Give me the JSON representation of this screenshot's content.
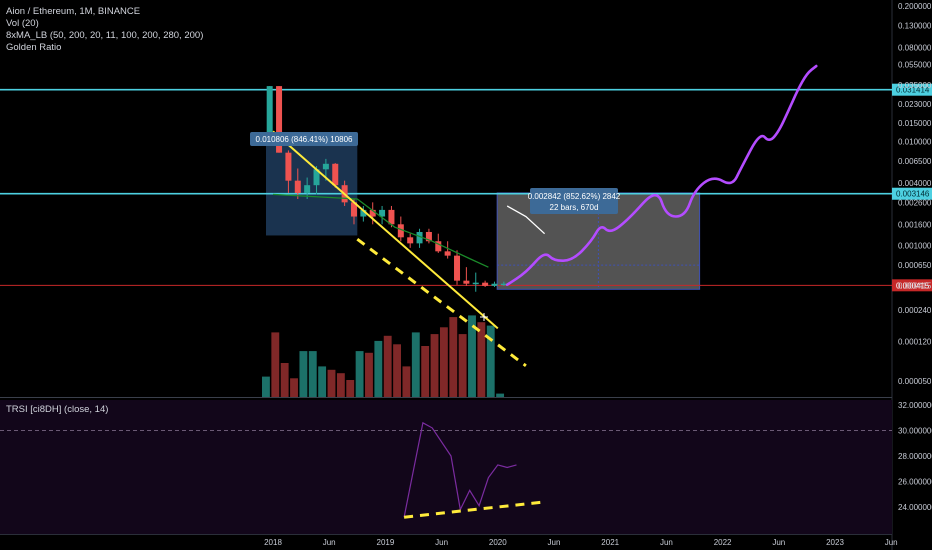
{
  "legend": {
    "line1": "Aion / Ethereum, 1M, BINANCE",
    "line2": "Vol (20)",
    "line3": "8xMA_LB (50, 200, 20, 11, 100, 200, 280, 200)",
    "line4": "Golden Ratio"
  },
  "rsi_title": "TRSI [ci8DH] (close, 14)",
  "colors": {
    "background": "#000000",
    "up_candle": "#26a69a",
    "down_candle": "#ef5350",
    "cyan_line": "#4dd0e1",
    "red_line": "#c62828",
    "yellow_trend": "#ffeb3b",
    "purple_projection": "#b44cff",
    "box_blue": "#2f5d8f",
    "box_grey": "#8a8a8a",
    "rsi_line": "#7b2ca0"
  },
  "chart_data": [
    {
      "type": "line",
      "title": "Aion / Ethereum, 1M, BINANCE",
      "y_scale": "log",
      "y_ticks": [
        "0.200000",
        "0.130000",
        "0.080000",
        "0.055000",
        "0.035000",
        "0.023000",
        "0.015000",
        "0.010000",
        "0.006500",
        "0.004000",
        "0.002600",
        "0.001600",
        "0.001000",
        "0.000650",
        "0.000415",
        "0.000240",
        "0.000120",
        "0.000050"
      ],
      "x_ticks": [
        "2018",
        "Jun",
        "2019",
        "Jun",
        "2020",
        "Jun",
        "2021",
        "Jun",
        "2022",
        "Jun",
        "2023",
        "Jun"
      ],
      "horizontal_levels": [
        {
          "value": "0.031414",
          "color": "#4dd0e1"
        },
        {
          "value": "0.003146",
          "color": "#4dd0e1"
        },
        {
          "value": "0.000415",
          "color": "#c62828"
        }
      ],
      "measure_labels": [
        {
          "text": "0.010806 (846.41%) 10806"
        },
        {
          "line1": "0.002842 (852.62%) 2842",
          "line2": "22 bars, 670d"
        }
      ],
      "candles": [
        {
          "o": 0.0118,
          "h": 0.034,
          "l": 0.0106,
          "c": 0.034
        },
        {
          "o": 0.034,
          "h": 0.034,
          "l": 0.0078,
          "c": 0.0078
        },
        {
          "o": 0.0078,
          "h": 0.0082,
          "l": 0.0032,
          "c": 0.0042
        },
        {
          "o": 0.0042,
          "h": 0.0055,
          "l": 0.0028,
          "c": 0.0032
        },
        {
          "o": 0.0032,
          "h": 0.0045,
          "l": 0.0028,
          "c": 0.0038
        },
        {
          "o": 0.0038,
          "h": 0.0058,
          "l": 0.0031,
          "c": 0.0054
        },
        {
          "o": 0.0054,
          "h": 0.0068,
          "l": 0.0042,
          "c": 0.0061
        },
        {
          "o": 0.0061,
          "h": 0.0062,
          "l": 0.0036,
          "c": 0.0038
        },
        {
          "o": 0.0038,
          "h": 0.0042,
          "l": 0.0024,
          "c": 0.0026
        },
        {
          "o": 0.0026,
          "h": 0.0028,
          "l": 0.0016,
          "c": 0.0019
        },
        {
          "o": 0.0019,
          "h": 0.0024,
          "l": 0.0017,
          "c": 0.0022
        },
        {
          "o": 0.0022,
          "h": 0.0026,
          "l": 0.0016,
          "c": 0.0019
        },
        {
          "o": 0.0019,
          "h": 0.0024,
          "l": 0.0016,
          "c": 0.0022
        },
        {
          "o": 0.0022,
          "h": 0.0024,
          "l": 0.0015,
          "c": 0.0016
        },
        {
          "o": 0.0016,
          "h": 0.0019,
          "l": 0.0011,
          "c": 0.0012
        },
        {
          "o": 0.0012,
          "h": 0.0013,
          "l": 0.00095,
          "c": 0.00105
        },
        {
          "o": 0.00105,
          "h": 0.00145,
          "l": 0.00095,
          "c": 0.00135
        },
        {
          "o": 0.00135,
          "h": 0.00145,
          "l": 0.00105,
          "c": 0.0011
        },
        {
          "o": 0.0011,
          "h": 0.0013,
          "l": 0.00085,
          "c": 0.00088
        },
        {
          "o": 0.00088,
          "h": 0.0011,
          "l": 0.00075,
          "c": 0.0008
        },
        {
          "o": 0.0008,
          "h": 0.0009,
          "l": 0.00042,
          "c": 0.00046
        },
        {
          "o": 0.00046,
          "h": 0.00062,
          "l": 0.00041,
          "c": 0.00043
        },
        {
          "o": 0.00043,
          "h": 0.00055,
          "l": 0.00036,
          "c": 0.00044
        },
        {
          "o": 0.00044,
          "h": 0.00046,
          "l": 0.0004,
          "c": 0.00041
        },
        {
          "o": 0.00041,
          "h": 0.00045,
          "l": 0.0004,
          "c": 0.00043
        },
        {
          "o": 0.00043,
          "h": 0.00045,
          "l": 0.00041,
          "c": 0.00043
        }
      ],
      "volumes": [
        0.12,
        0.38,
        0.2,
        0.11,
        0.27,
        0.27,
        0.18,
        0.16,
        0.14,
        0.1,
        0.27,
        0.26,
        0.33,
        0.36,
        0.31,
        0.18,
        0.38,
        0.3,
        0.37,
        0.41,
        0.47,
        0.37,
        0.48,
        0.44,
        0.42,
        0.02
      ],
      "ma_green": [
        {
          "x": "Jan 2018",
          "y": 0.0031
        },
        {
          "x": "Oct 2018",
          "y": 0.0028
        },
        {
          "x": "Feb 2019",
          "y": 0.0015
        },
        {
          "x": "Jun 2019",
          "y": 0.0011
        },
        {
          "x": "Oct 2019",
          "y": 0.00075
        },
        {
          "x": "Dec 2019",
          "y": 0.00062
        }
      ],
      "ma_white": [
        {
          "x": "Feb 2020",
          "y": 0.0024
        },
        {
          "x": "Apr 2020",
          "y": 0.0019
        },
        {
          "x": "Jun 2020",
          "y": 0.0013
        }
      ],
      "trendline_solid": [
        {
          "x": "Jan 2018",
          "y": 0.0125
        },
        {
          "x": "Jan 2020",
          "y": 0.00016
        }
      ],
      "trendline_dashed": [
        {
          "x": "Oct 2018",
          "y": 0.00115
        },
        {
          "x": "Apr 2020",
          "y": 7e-05
        }
      ],
      "projection": [
        {
          "x": "Feb 2020",
          "y": 0.00042
        },
        {
          "x": "Apr 2020",
          "y": 0.00055
        },
        {
          "x": "Jun 2020",
          "y": 0.00088
        },
        {
          "x": "Jul 2020",
          "y": 0.00071
        },
        {
          "x": "Sep 2020",
          "y": 0.00072
        },
        {
          "x": "Nov 2020",
          "y": 0.0011
        },
        {
          "x": "Dec 2020",
          "y": 0.0016
        },
        {
          "x": "Jan 2021",
          "y": 0.0013
        },
        {
          "x": "Mar 2021",
          "y": 0.0018
        },
        {
          "x": "Jun 2021",
          "y": 0.0036
        },
        {
          "x": "Jul 2021",
          "y": 0.0019
        },
        {
          "x": "Sep 2021",
          "y": 0.0019
        },
        {
          "x": "Oct 2021",
          "y": 0.0034
        },
        {
          "x": "Dec 2021",
          "y": 0.0047
        },
        {
          "x": "Feb 2022",
          "y": 0.0037
        },
        {
          "x": "Mar 2022",
          "y": 0.0056
        },
        {
          "x": "May 2022",
          "y": 0.0123
        },
        {
          "x": "Jun 2022",
          "y": 0.0098
        },
        {
          "x": "Jul 2022",
          "y": 0.0125
        },
        {
          "x": "Aug 2022",
          "y": 0.0195
        },
        {
          "x": "Sep 2022",
          "y": 0.031
        },
        {
          "x": "Oct 2022",
          "y": 0.045
        },
        {
          "x": "Nov 2022",
          "y": 0.053
        }
      ],
      "boxes": [
        {
          "x0": "Jan 2018",
          "x1": "Oct 2018",
          "y_low": 0.00125,
          "y_high": 0.0123
        },
        {
          "x0": "Feb 2020",
          "x1": "Jan 2022",
          "y_low": 0.00038,
          "y_high": 0.0032
        }
      ]
    },
    {
      "type": "line",
      "title": "TRSI [ci8DH] (close, 14)",
      "y_ticks": [
        "32.000000",
        "30.000000",
        "28.000000",
        "26.000000",
        "24.000000"
      ],
      "dashed_level": 30.0,
      "rsi": [
        {
          "x": "Mar 2019",
          "y": 23.2
        },
        {
          "x": "May 2019",
          "y": 30.6
        },
        {
          "x": "Jun 2019",
          "y": 30.2
        },
        {
          "x": "Aug 2019",
          "y": 28.0
        },
        {
          "x": "Sep 2019",
          "y": 23.8
        },
        {
          "x": "Oct 2019",
          "y": 25.3
        },
        {
          "x": "Nov 2019",
          "y": 24.1
        },
        {
          "x": "Dec 2019",
          "y": 26.3
        },
        {
          "x": "Jan 2020",
          "y": 27.3
        },
        {
          "x": "Feb 2020",
          "y": 27.1
        },
        {
          "x": "Mar 2020",
          "y": 27.3
        }
      ],
      "trendline_dashed": [
        {
          "x": "Mar 2019",
          "y": 23.2
        },
        {
          "x": "Jun 2020",
          "y": 24.4
        }
      ]
    }
  ]
}
